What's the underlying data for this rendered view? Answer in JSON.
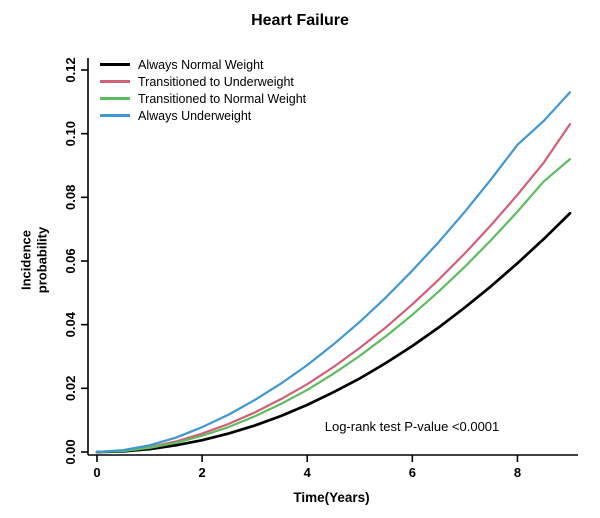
{
  "chart_data": {
    "type": "line",
    "title": "Heart Failure",
    "xlabel": "Time(Years)",
    "ylabel_line1": "Incidence",
    "ylabel_line2": "probability",
    "annotation": "Log-rank test P-value <0.0001",
    "legend_position": "top-left",
    "grid": false,
    "xlim": [
      0,
      9
    ],
    "ylim": [
      0,
      0.12
    ],
    "x_tick_values": [
      0,
      2,
      4,
      6,
      8
    ],
    "x_tick_labels": [
      "0",
      "2",
      "4",
      "6",
      "8"
    ],
    "y_tick_values": [
      0,
      0.02,
      0.04,
      0.06,
      0.08,
      0.1,
      0.12
    ],
    "y_tick_labels": [
      "0.00",
      "0.02",
      "0.04",
      "0.06",
      "0.08",
      "0.10",
      "0.12"
    ],
    "x": [
      0,
      0.5,
      1,
      1.5,
      2,
      2.5,
      3,
      3.5,
      4,
      4.5,
      5,
      5.5,
      6,
      6.5,
      7,
      7.5,
      8,
      8.5,
      9
    ],
    "series": [
      {
        "name": "Always Normal Weight",
        "color": "#000000",
        "values": [
          0,
          0.0002,
          0.0009,
          0.0021,
          0.0037,
          0.0058,
          0.0083,
          0.0113,
          0.0148,
          0.0188,
          0.0231,
          0.028,
          0.0333,
          0.0391,
          0.0454,
          0.0521,
          0.0593,
          0.0669,
          0.075
        ]
      },
      {
        "name": "Transitioned to Underweight",
        "color": "#d25f77",
        "values": [
          0,
          0.0004,
          0.0015,
          0.0033,
          0.0058,
          0.0088,
          0.0124,
          0.0166,
          0.0213,
          0.0267,
          0.0327,
          0.0392,
          0.0464,
          0.0541,
          0.0624,
          0.0713,
          0.0808,
          0.0909,
          0.103
        ]
      },
      {
        "name": "Transitioned to Normal Weight",
        "color": "#5cbd5f",
        "values": [
          0,
          0.0003,
          0.0013,
          0.0029,
          0.0051,
          0.0078,
          0.0112,
          0.0151,
          0.0195,
          0.0246,
          0.0302,
          0.0364,
          0.0431,
          0.0504,
          0.0582,
          0.0666,
          0.0755,
          0.085,
          0.092
        ]
      },
      {
        "name": "Always Underweight",
        "color": "#3f97d4",
        "values": [
          0,
          0.0006,
          0.0021,
          0.0045,
          0.0078,
          0.0117,
          0.0163,
          0.0215,
          0.0273,
          0.0338,
          0.0409,
          0.0486,
          0.057,
          0.0659,
          0.0755,
          0.0857,
          0.0965,
          0.104,
          0.113
        ]
      }
    ]
  }
}
